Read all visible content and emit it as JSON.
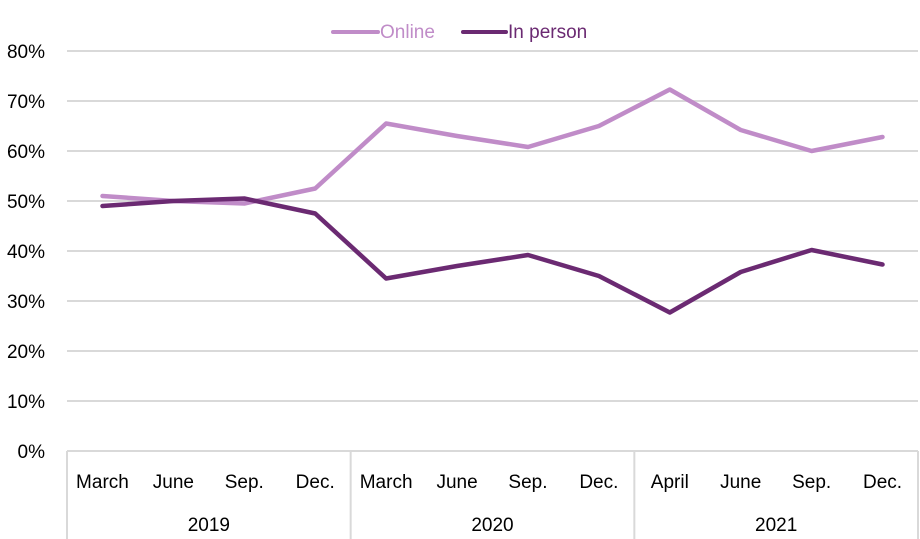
{
  "chart_data": {
    "type": "line",
    "title": "",
    "xlabel": "",
    "ylabel": "",
    "ylim": [
      0,
      80
    ],
    "y_ticks": [
      "0%",
      "10%",
      "20%",
      "30%",
      "40%",
      "50%",
      "60%",
      "70%",
      "80%"
    ],
    "grid": true,
    "legend_position": "top",
    "categories": [
      "March",
      "June",
      "Sep.",
      "Dec.",
      "March",
      "June",
      "Sep.",
      "Dec.",
      "April",
      "June",
      "Sep.",
      "Dec."
    ],
    "groups": [
      {
        "label": "2019",
        "count": 4
      },
      {
        "label": "2020",
        "count": 4
      },
      {
        "label": "2021",
        "count": 4
      }
    ],
    "series": [
      {
        "name": "Online",
        "color": "#c08cc8",
        "values": [
          51,
          50,
          49.5,
          52.5,
          65.5,
          63,
          60.8,
          65,
          72.3,
          64.2,
          60,
          62.8
        ]
      },
      {
        "name": "In person",
        "color": "#6b2a72",
        "values": [
          49,
          50,
          50.5,
          47.5,
          34.5,
          37,
          39.2,
          35,
          27.7,
          35.8,
          40.2,
          37.3
        ]
      }
    ]
  }
}
